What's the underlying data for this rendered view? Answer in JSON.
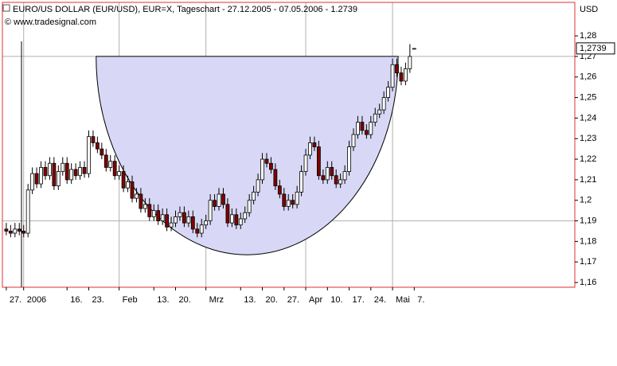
{
  "chart_data": {
    "type": "candlestick",
    "title": "EURO/US DOLLAR (EUR/USD), EUR=X, Tageschart - 27.12.2005 - 07.05.2006 - 1.2739",
    "subtitle": "© www.tradesignal.com",
    "y_unit": "USD",
    "open": [
      1.186,
      1.185,
      1.184,
      1.186,
      1.185,
      1.184,
      1.205,
      1.213,
      1.208,
      1.216,
      1.212,
      1.218,
      1.207,
      1.214,
      1.218,
      1.21,
      1.215,
      1.212,
      1.216,
      1.213,
      1.231,
      1.228,
      1.225,
      1.222,
      1.216,
      1.219,
      1.212,
      1.214,
      1.206,
      1.209,
      1.201,
      1.203,
      1.196,
      1.198,
      1.192,
      1.195,
      1.19,
      1.193,
      1.187,
      1.189,
      1.192,
      1.194,
      1.189,
      1.192,
      1.186,
      1.184,
      1.188,
      1.19,
      1.2,
      1.197,
      1.203,
      1.198,
      1.189,
      1.193,
      1.188,
      1.191,
      1.194,
      1.2,
      1.204,
      1.21,
      1.22,
      1.218,
      1.215,
      1.207,
      1.203,
      1.197,
      1.2,
      1.198,
      1.204,
      1.214,
      1.222,
      1.228,
      1.226,
      1.212,
      1.21,
      1.216,
      1.212,
      1.208,
      1.21,
      1.214,
      1.226,
      1.232,
      1.238,
      1.234,
      1.232,
      1.238,
      1.242,
      1.244,
      1.25,
      1.255,
      1.266,
      1.262,
      1.258,
      1.264,
      1.2739
    ],
    "high": [
      1.189,
      1.188,
      1.189,
      1.189,
      1.188,
      1.208,
      1.216,
      1.216,
      1.219,
      1.219,
      1.221,
      1.221,
      1.217,
      1.221,
      1.221,
      1.218,
      1.218,
      1.219,
      1.219,
      1.234,
      1.234,
      1.231,
      1.228,
      1.225,
      1.222,
      1.222,
      1.217,
      1.217,
      1.212,
      1.212,
      1.206,
      1.206,
      1.201,
      1.201,
      1.198,
      1.198,
      1.196,
      1.196,
      1.192,
      1.195,
      1.197,
      1.197,
      1.195,
      1.195,
      1.189,
      1.191,
      1.193,
      1.203,
      1.203,
      1.206,
      1.206,
      1.201,
      1.196,
      1.196,
      1.194,
      1.197,
      1.203,
      1.207,
      1.213,
      1.223,
      1.223,
      1.221,
      1.218,
      1.21,
      1.206,
      1.203,
      1.203,
      1.207,
      1.217,
      1.225,
      1.231,
      1.231,
      1.229,
      1.215,
      1.219,
      1.219,
      1.215,
      1.213,
      1.217,
      1.229,
      1.235,
      1.241,
      1.241,
      1.237,
      1.241,
      1.245,
      1.247,
      1.253,
      1.258,
      1.269,
      1.269,
      1.265,
      1.267,
      1.276,
      1.2739
    ],
    "low": [
      1.183,
      1.182,
      1.182,
      1.183,
      1.182,
      1.182,
      1.203,
      1.206,
      1.206,
      1.21,
      1.21,
      1.205,
      1.205,
      1.212,
      1.208,
      1.208,
      1.21,
      1.21,
      1.211,
      1.211,
      1.226,
      1.223,
      1.22,
      1.214,
      1.214,
      1.21,
      1.21,
      1.204,
      1.204,
      1.199,
      1.199,
      1.194,
      1.194,
      1.19,
      1.19,
      1.188,
      1.188,
      1.185,
      1.185,
      1.187,
      1.19,
      1.187,
      1.187,
      1.184,
      1.182,
      1.182,
      1.186,
      1.188,
      1.195,
      1.195,
      1.196,
      1.187,
      1.187,
      1.186,
      1.186,
      1.189,
      1.192,
      1.198,
      1.202,
      1.208,
      1.216,
      1.213,
      1.205,
      1.201,
      1.195,
      1.195,
      1.196,
      1.196,
      1.202,
      1.212,
      1.22,
      1.224,
      1.21,
      1.208,
      1.208,
      1.21,
      1.206,
      1.206,
      1.208,
      1.212,
      1.224,
      1.23,
      1.232,
      1.23,
      1.23,
      1.236,
      1.24,
      1.242,
      1.248,
      1.253,
      1.26,
      1.256,
      1.256,
      1.262,
      1.2739
    ],
    "close": [
      1.185,
      1.184,
      1.186,
      1.185,
      1.184,
      1.205,
      1.213,
      1.208,
      1.216,
      1.212,
      1.218,
      1.207,
      1.214,
      1.218,
      1.21,
      1.215,
      1.212,
      1.216,
      1.213,
      1.231,
      1.228,
      1.225,
      1.222,
      1.216,
      1.219,
      1.212,
      1.214,
      1.206,
      1.209,
      1.201,
      1.203,
      1.196,
      1.198,
      1.192,
      1.195,
      1.19,
      1.193,
      1.187,
      1.189,
      1.192,
      1.194,
      1.189,
      1.192,
      1.186,
      1.184,
      1.188,
      1.19,
      1.2,
      1.197,
      1.203,
      1.198,
      1.189,
      1.193,
      1.188,
      1.191,
      1.194,
      1.2,
      1.204,
      1.21,
      1.22,
      1.218,
      1.215,
      1.207,
      1.203,
      1.197,
      1.2,
      1.198,
      1.204,
      1.214,
      1.222,
      1.228,
      1.226,
      1.212,
      1.21,
      1.216,
      1.212,
      1.208,
      1.21,
      1.214,
      1.226,
      1.232,
      1.238,
      1.234,
      1.232,
      1.238,
      1.242,
      1.244,
      1.25,
      1.255,
      1.266,
      1.262,
      1.258,
      1.264,
      1.27,
      1.2739
    ],
    "up_color": "#ffffff",
    "down_color": "#800000",
    "xlim": [
      -0.9,
      131
    ],
    "xticks": [
      {
        "value": 0,
        "label": "27."
      },
      {
        "value": 4,
        "label": "2006"
      },
      {
        "value": 14,
        "label": "16."
      },
      {
        "value": 19,
        "label": "23."
      },
      {
        "value": 26,
        "label": "Feb"
      },
      {
        "value": 34,
        "label": "13."
      },
      {
        "value": 39,
        "label": "20."
      },
      {
        "value": 46,
        "label": "Mrz"
      },
      {
        "value": 54,
        "label": "13."
      },
      {
        "value": 59,
        "label": "20."
      },
      {
        "value": 64,
        "label": "27."
      },
      {
        "value": 69,
        "label": "Apr"
      },
      {
        "value": 74,
        "label": "10."
      },
      {
        "value": 79,
        "label": "17."
      },
      {
        "value": 84,
        "label": "24."
      },
      {
        "value": 89,
        "label": "Mai"
      },
      {
        "value": 94,
        "label": "7."
      }
    ],
    "xgrid": [
      4,
      26,
      46,
      69,
      89
    ],
    "ylim": [
      1.1577,
      1.2963
    ],
    "yticks": [
      {
        "value": 1.16,
        "label": "1,16"
      },
      {
        "value": 1.17,
        "label": "1,17"
      },
      {
        "value": 1.18,
        "label": "1,18"
      },
      {
        "value": 1.19,
        "label": "1,19"
      },
      {
        "value": 1.2,
        "label": "1,2"
      },
      {
        "value": 1.21,
        "label": "1,21"
      },
      {
        "value": 1.22,
        "label": "1,22"
      },
      {
        "value": 1.23,
        "label": "1,23"
      },
      {
        "value": 1.24,
        "label": "1,24"
      },
      {
        "value": 1.25,
        "label": "1,25"
      },
      {
        "value": 1.26,
        "label": "1,26"
      },
      {
        "value": 1.27,
        "label": "1,27"
      },
      {
        "value": 1.28,
        "label": "1,28"
      }
    ],
    "ygrid": [
      1.19,
      1.27
    ],
    "last_value": {
      "value": 1.2739,
      "label": "1,2739"
    },
    "shape": {
      "type": "half-ellipse",
      "start": 20.7,
      "end": 90.3,
      "top": 1.27,
      "bottom": 1.1735,
      "color": "#d8d8f6"
    }
  }
}
